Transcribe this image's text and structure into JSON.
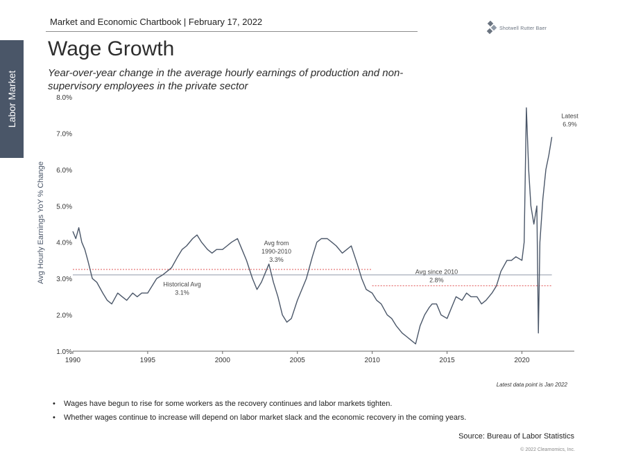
{
  "side_tab": "Labor Market",
  "header": "Market and Economic Chartbook | February 17, 2022",
  "logo": {
    "text": "Shotwell Rutter Baer",
    "icon": "logo-diamond-icon",
    "color": "#6b7480"
  },
  "title": "Wage Growth",
  "subtitle": "Year-over-year change in the average hourly earnings of production and non-supervisory employees in the private sector",
  "notes": [
    "Wages have begun to rise for some workers as the recovery continues and labor markets tighten.",
    "Whether wages continue to increase will depend on labor market slack and the economic recovery in the coming years."
  ],
  "source": "Source: Bureau of Labor Statistics",
  "copyright": "© 2022 Clearnomics, Inc.",
  "chart_data": {
    "type": "line",
    "ylabel": "Avg Hourly Earnings YoY % Change",
    "xlabel": "",
    "xlim": [
      1990,
      2023.5
    ],
    "ylim": [
      1.0,
      8.0
    ],
    "x_ticks": [
      1990,
      1995,
      2000,
      2005,
      2010,
      2015,
      2020
    ],
    "x_tick_labels": [
      "1990",
      "1995",
      "2000",
      "2005",
      "2010",
      "2015",
      "2020"
    ],
    "y_ticks": [
      1.0,
      2.0,
      3.0,
      4.0,
      5.0,
      6.0,
      7.0,
      8.0
    ],
    "y_tick_labels": [
      "1.0%",
      "2.0%",
      "3.0%",
      "4.0%",
      "5.0%",
      "6.0%",
      "7.0%",
      "8.0%"
    ],
    "grid": false,
    "colors": {
      "line": "#4a5668",
      "reference_red": "#e05555",
      "reference_gray": "#8f99a6"
    },
    "series": [
      {
        "name": "",
        "x": [
          1990.0,
          1990.2,
          1990.4,
          1990.6,
          1990.8,
          1991.0,
          1991.3,
          1991.6,
          1992.0,
          1992.3,
          1992.6,
          1993.0,
          1993.3,
          1993.6,
          1994.0,
          1994.3,
          1994.6,
          1995.0,
          1995.3,
          1995.6,
          1996.0,
          1996.3,
          1996.6,
          1997.0,
          1997.3,
          1997.6,
          1998.0,
          1998.3,
          1998.6,
          1999.0,
          1999.3,
          1999.6,
          2000.0,
          2000.3,
          2000.6,
          2001.0,
          2001.3,
          2001.6,
          2002.0,
          2002.3,
          2002.6,
          2002.9,
          2003.1,
          2003.4,
          2003.7,
          2004.0,
          2004.3,
          2004.6,
          2005.0,
          2005.3,
          2005.6,
          2006.0,
          2006.3,
          2006.6,
          2007.0,
          2007.3,
          2007.6,
          2008.0,
          2008.3,
          2008.6,
          2009.0,
          2009.3,
          2009.6,
          2010.0,
          2010.3,
          2010.6,
          2011.0,
          2011.3,
          2011.6,
          2012.0,
          2012.3,
          2012.6,
          2012.9,
          2013.2,
          2013.5,
          2013.8,
          2014.0,
          2014.3,
          2014.6,
          2015.0,
          2015.3,
          2015.6,
          2016.0,
          2016.3,
          2016.6,
          2017.0,
          2017.3,
          2017.6,
          2018.0,
          2018.3,
          2018.6,
          2019.0,
          2019.3,
          2019.6,
          2020.0,
          2020.15,
          2020.3,
          2020.45,
          2020.6,
          2020.8,
          2021.0,
          2021.1,
          2021.2,
          2021.4,
          2021.6,
          2021.8,
          2022.0
        ],
        "values": [
          4.3,
          4.1,
          4.4,
          4.0,
          3.8,
          3.5,
          3.0,
          2.9,
          2.6,
          2.4,
          2.3,
          2.6,
          2.5,
          2.4,
          2.6,
          2.5,
          2.6,
          2.6,
          2.8,
          3.0,
          3.1,
          3.2,
          3.3,
          3.6,
          3.8,
          3.9,
          4.1,
          4.2,
          4.0,
          3.8,
          3.7,
          3.8,
          3.8,
          3.9,
          4.0,
          4.1,
          3.8,
          3.5,
          3.0,
          2.7,
          2.9,
          3.2,
          3.4,
          2.9,
          2.5,
          2.0,
          1.8,
          1.9,
          2.4,
          2.7,
          3.0,
          3.6,
          4.0,
          4.1,
          4.1,
          4.0,
          3.9,
          3.7,
          3.8,
          3.9,
          3.4,
          3.0,
          2.7,
          2.6,
          2.4,
          2.3,
          2.0,
          1.9,
          1.7,
          1.5,
          1.4,
          1.3,
          1.2,
          1.7,
          2.0,
          2.2,
          2.3,
          2.3,
          2.0,
          1.9,
          2.2,
          2.5,
          2.4,
          2.6,
          2.5,
          2.5,
          2.3,
          2.4,
          2.6,
          2.8,
          3.2,
          3.5,
          3.5,
          3.6,
          3.5,
          4.0,
          7.7,
          6.0,
          5.0,
          4.5,
          5.0,
          1.5,
          4.0,
          5.2,
          6.0,
          6.4,
          6.9
        ]
      }
    ],
    "reference_lines": [
      {
        "label": "Historical Avg\n3.1%",
        "value": 3.1,
        "x_start": 1990,
        "x_end": 2022,
        "style": "solid",
        "color": "#8f99a6"
      },
      {
        "label": "Avg from\n1990-2010\n3.3%",
        "value": 3.25,
        "x_start": 1990,
        "x_end": 2010,
        "style": "dotted",
        "color": "#e05555"
      },
      {
        "label": "Avg since 2010\n2.8%",
        "value": 2.8,
        "x_start": 2010,
        "x_end": 2022,
        "style": "dotted",
        "color": "#e05555"
      }
    ],
    "annotations": [
      {
        "lines": [
          "Historical Avg",
          "3.1%"
        ],
        "x": 1997.3,
        "y": 2.78
      },
      {
        "lines": [
          "Avg from",
          "1990-2010",
          "3.3%"
        ],
        "x": 2003.6,
        "y": 3.92
      },
      {
        "lines": [
          "Avg since 2010",
          "2.8%"
        ],
        "x": 2014.3,
        "y": 3.13
      },
      {
        "lines": [
          "Latest",
          "6.9%"
        ],
        "x": 2023.2,
        "y": 7.42
      }
    ],
    "footnote": "Latest data point is Jan 2022"
  }
}
